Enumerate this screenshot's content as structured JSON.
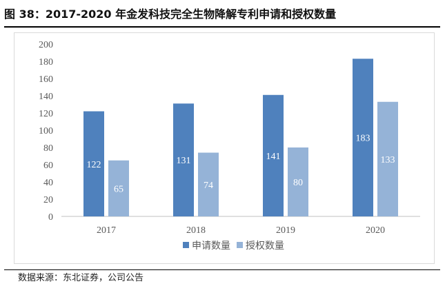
{
  "figure": {
    "title": "图 38：2017-2020 年金发科技完全生物降解专利申请和授权数量",
    "source": "数据来源：东北证券，公司公告"
  },
  "chart_data": {
    "type": "bar",
    "title": "",
    "categories": [
      "2017",
      "2018",
      "2019",
      "2020"
    ],
    "series": [
      {
        "name": "申请数量",
        "values": [
          122,
          131,
          141,
          183
        ],
        "color": "#4f81bd"
      },
      {
        "name": "授权数量",
        "values": [
          65,
          74,
          80,
          133
        ],
        "color": "#95b3d7"
      }
    ],
    "ylim": [
      0,
      200
    ],
    "yticks": [
      0,
      20,
      40,
      60,
      80,
      100,
      120,
      140,
      160,
      180,
      200
    ],
    "xlabel": "",
    "ylabel": "",
    "grid": false,
    "legend_position": "bottom",
    "data_label_color": "#ffffff",
    "axis_color": "#bfbfbf"
  }
}
